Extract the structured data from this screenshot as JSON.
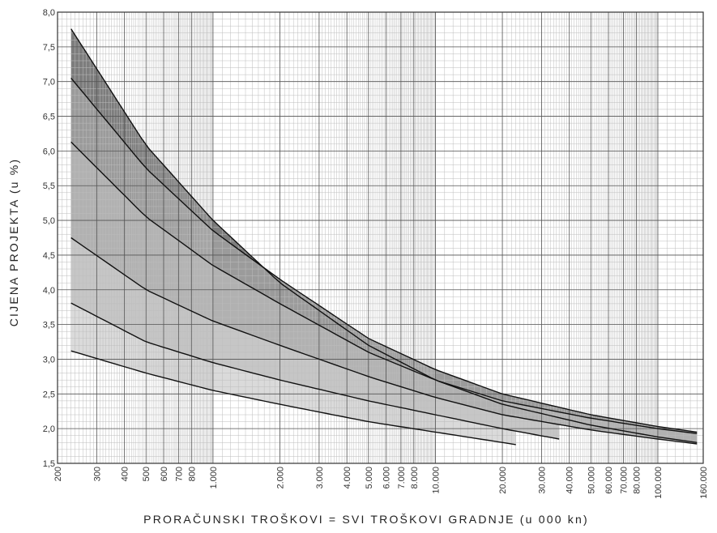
{
  "chart_data": {
    "type": "line",
    "title": "",
    "xlabel": "PRORAČUNSKI TROŠKOVI = SVI TROŠKOVI GRADNJE (u 000 kn)",
    "ylabel": "CIJENA PROJEKTA (u %)",
    "x_scale": "log",
    "xlim": [
      200,
      160000
    ],
    "ylim": [
      1.5,
      8.0
    ],
    "grid": true,
    "x_ticks": [
      200,
      300,
      400,
      500,
      600,
      700,
      800,
      1000,
      2000,
      3000,
      4000,
      5000,
      6000,
      7000,
      8000,
      10000,
      20000,
      30000,
      40000,
      50000,
      60000,
      70000,
      80000,
      100000,
      160000
    ],
    "x_tick_labels": [
      "200",
      "300",
      "400",
      "500",
      "600",
      "700",
      "800",
      "1.000",
      "2.000",
      "3.000",
      "4.000",
      "5.000",
      "6.000",
      "7.000",
      "8.000",
      "10.000",
      "20.000",
      "30.000",
      "40.000",
      "50.000",
      "60.000",
      "70.000",
      "80.000",
      "100.000",
      "160.000"
    ],
    "y_ticks": [
      1.5,
      2.0,
      2.5,
      3.0,
      3.5,
      4.0,
      4.5,
      5.0,
      5.5,
      6.0,
      6.5,
      7.0,
      7.5,
      8.0
    ],
    "y_tick_labels": [
      "1,5",
      "2,0",
      "2,5",
      "3,0",
      "3,5",
      "4,0",
      "4,5",
      "5,0",
      "5,5",
      "6,0",
      "6,5",
      "7,0",
      "7,5",
      "8,0"
    ],
    "series": [
      {
        "x": [
          230,
          500,
          1000,
          2000,
          5000,
          10000,
          20000,
          50000,
          100000,
          150000
        ],
        "y": [
          7.76,
          6.08,
          5.0,
          4.1,
          3.2,
          2.7,
          2.35,
          2.05,
          1.88,
          1.8
        ],
        "color": "#111111"
      },
      {
        "x": [
          230,
          500,
          1000,
          2000,
          5000,
          10000,
          20000,
          50000,
          100000,
          150000
        ],
        "y": [
          7.05,
          5.75,
          4.85,
          4.15,
          3.3,
          2.85,
          2.5,
          2.2,
          2.03,
          1.95
        ],
        "color": "#111111"
      },
      {
        "x": [
          230,
          500,
          1000,
          2000,
          5000,
          10000,
          20000,
          50000,
          100000,
          150000
        ],
        "y": [
          6.13,
          5.05,
          4.35,
          3.8,
          3.1,
          2.7,
          2.4,
          2.15,
          2.0,
          1.93
        ],
        "color": "#111111"
      },
      {
        "x": [
          230,
          500,
          1000,
          2000,
          5000,
          10000,
          20000,
          50000,
          100000,
          150000
        ],
        "y": [
          4.75,
          4.0,
          3.55,
          3.2,
          2.75,
          2.45,
          2.2,
          1.98,
          1.85,
          1.78
        ],
        "color": "#111111"
      },
      {
        "x": [
          230,
          500,
          1000,
          2000,
          5000,
          10000,
          20000,
          36000
        ],
        "y": [
          3.81,
          3.25,
          2.95,
          2.7,
          2.4,
          2.2,
          2.0,
          1.85
        ],
        "color": "#111111"
      },
      {
        "x": [
          230,
          500,
          1000,
          2000,
          5000,
          10000,
          23000
        ],
        "y": [
          3.12,
          2.8,
          2.55,
          2.35,
          2.1,
          1.95,
          1.77
        ],
        "color": "#111111"
      }
    ],
    "bands": [
      {
        "lower_series": 0,
        "upper_series": 1,
        "color": "#7d7d7d"
      },
      {
        "lower_series": 1,
        "upper_series": 2,
        "color": "#9b9b9b"
      },
      {
        "lower_series": 2,
        "upper_series": 3,
        "color": "#b1b1b1"
      },
      {
        "lower_series": 3,
        "upper_series": 4,
        "color": "#c6c6c6"
      },
      {
        "lower_series": 4,
        "upper_series": 5,
        "color": "#dadada"
      }
    ],
    "colors": {
      "minor_grid": "#bdbdbd",
      "major_grid": "#555555",
      "frame": "#333333"
    }
  }
}
